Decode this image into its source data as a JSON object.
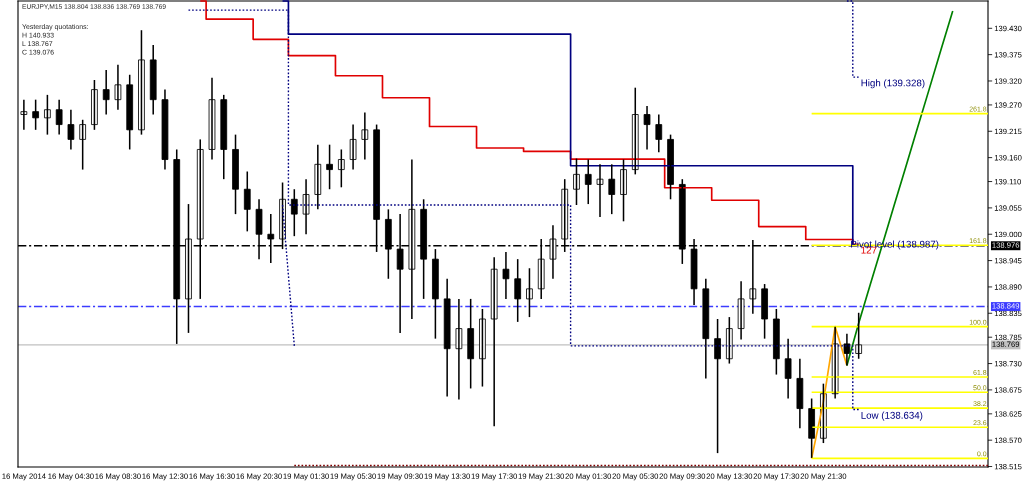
{
  "chart_data": {
    "type": "candlestick",
    "title": "EURJPY,M15 138.804 138.836 138.769 138.769",
    "annotations": [
      "Yesterday quotations:",
      "H 140.933",
      "L 138.767",
      "C 139.076",
      {
        "text": "Pivot level (138.987)",
        "y": 138.987
      }
    ],
    "categories": [
      "16 May 2014",
      null,
      null,
      null,
      "16 May 04:30",
      null,
      null,
      null,
      "16 May 08:30",
      null,
      null,
      null,
      "16 May 12:30",
      null,
      null,
      null,
      "16 May 16:30",
      null,
      null,
      null,
      "16 May 20:30",
      null,
      null,
      null,
      "19 May 01:30",
      null,
      null,
      null,
      "19 May 05:30",
      null,
      null,
      null,
      "19 May 09:30",
      null,
      null,
      null,
      "19 May 13:30",
      null,
      null,
      null,
      "19 May 17:30",
      null,
      null,
      null,
      "19 May 21:30",
      null,
      null,
      null,
      "20 May 01:30",
      null,
      null,
      null,
      "20 May 05:30",
      null,
      null,
      null,
      "20 May 09:30",
      null,
      null,
      null,
      "20 May 13:30",
      null,
      null,
      null,
      "20 May 17:30",
      null,
      null,
      null,
      "20 May 21:30",
      null,
      null,
      null,
      null,
      null,
      null,
      null,
      null,
      null,
      null,
      null,
      null,
      null,
      null
    ],
    "ohlc": [
      [
        139.25,
        139.281,
        139.218,
        139.256
      ],
      [
        139.256,
        139.281,
        139.218,
        139.243
      ],
      [
        139.243,
        139.291,
        139.208,
        139.26
      ],
      [
        139.26,
        139.281,
        139.208,
        139.229
      ],
      [
        139.229,
        139.26,
        139.177,
        139.198
      ],
      [
        139.198,
        139.239,
        139.135,
        139.229
      ],
      [
        139.229,
        139.322,
        139.218,
        139.302
      ],
      [
        139.302,
        139.343,
        139.25,
        139.281
      ],
      [
        139.281,
        139.354,
        139.26,
        139.312
      ],
      [
        139.312,
        139.333,
        139.177,
        139.218
      ],
      [
        139.218,
        139.426,
        139.208,
        139.364
      ],
      [
        139.364,
        139.395,
        139.25,
        139.281
      ],
      [
        139.281,
        139.302,
        139.135,
        139.156
      ],
      [
        139.156,
        139.177,
        138.771,
        138.865
      ],
      [
        138.865,
        139.063,
        138.794,
        138.99
      ],
      [
        138.99,
        139.198,
        138.865,
        139.177
      ],
      [
        139.177,
        139.327,
        139.156,
        139.281
      ],
      [
        139.281,
        139.291,
        139.115,
        139.177
      ],
      [
        139.177,
        139.208,
        139.042,
        139.094
      ],
      [
        139.094,
        139.131,
        139.006,
        139.052
      ],
      [
        139.052,
        139.073,
        138.948,
        139.0
      ],
      [
        139.0,
        139.042,
        138.94,
        138.99
      ],
      [
        138.99,
        139.108,
        138.969,
        139.073
      ],
      [
        139.073,
        139.094,
        138.996,
        139.042
      ],
      [
        139.042,
        139.115,
        139.0,
        139.083
      ],
      [
        139.083,
        139.187,
        139.052,
        139.146
      ],
      [
        139.146,
        139.187,
        139.094,
        139.135
      ],
      [
        139.135,
        139.177,
        139.098,
        139.156
      ],
      [
        139.156,
        139.229,
        139.135,
        139.198
      ],
      [
        139.198,
        139.254,
        139.156,
        139.218
      ],
      [
        139.218,
        139.229,
        138.963,
        139.031
      ],
      [
        139.031,
        139.052,
        138.907,
        138.969
      ],
      [
        138.969,
        139.042,
        138.794,
        138.927
      ],
      [
        138.927,
        139.156,
        138.823,
        139.052
      ],
      [
        139.052,
        139.073,
        138.865,
        138.948
      ],
      [
        138.948,
        138.969,
        138.782,
        138.865
      ],
      [
        138.865,
        138.907,
        138.661,
        138.761
      ],
      [
        138.761,
        138.865,
        138.655,
        138.803
      ],
      [
        138.803,
        138.865,
        138.678,
        138.74
      ],
      [
        138.74,
        138.844,
        138.682,
        138.823
      ],
      [
        138.823,
        138.952,
        138.599,
        138.927
      ],
      [
        138.927,
        138.963,
        138.865,
        138.907
      ],
      [
        138.907,
        138.948,
        138.817,
        138.865
      ],
      [
        138.865,
        138.929,
        138.827,
        138.886
      ],
      [
        138.886,
        138.99,
        138.865,
        138.948
      ],
      [
        138.948,
        139.019,
        138.907,
        138.99
      ],
      [
        138.99,
        139.115,
        138.963,
        139.094
      ],
      [
        139.094,
        139.158,
        139.061,
        139.125
      ],
      [
        139.125,
        139.156,
        139.063,
        139.104
      ],
      [
        139.104,
        139.146,
        139.036,
        139.115
      ],
      [
        139.115,
        139.146,
        139.042,
        139.083
      ],
      [
        139.083,
        139.156,
        139.027,
        139.135
      ],
      [
        139.135,
        139.306,
        139.125,
        139.25
      ],
      [
        139.25,
        139.268,
        139.177,
        139.229
      ],
      [
        139.229,
        139.25,
        139.171,
        139.198
      ],
      [
        139.198,
        139.208,
        139.073,
        139.104
      ],
      [
        139.104,
        139.115,
        138.938,
        138.969
      ],
      [
        138.969,
        138.99,
        138.852,
        138.886
      ],
      [
        138.886,
        138.907,
        138.699,
        138.782
      ],
      [
        138.782,
        138.823,
        138.543,
        138.74
      ],
      [
        138.74,
        138.827,
        138.73,
        138.803
      ],
      [
        138.803,
        138.902,
        138.78,
        138.865
      ],
      [
        138.865,
        138.988,
        138.834,
        138.886
      ],
      [
        138.886,
        138.896,
        138.782,
        138.823
      ],
      [
        138.823,
        138.844,
        138.707,
        138.74
      ],
      [
        138.74,
        138.782,
        138.657,
        138.699
      ],
      [
        138.699,
        138.74,
        138.595,
        138.636
      ],
      [
        138.636,
        138.657,
        138.533,
        138.574
      ],
      [
        138.574,
        138.688,
        138.564,
        138.667
      ],
      [
        138.667,
        138.807,
        138.657,
        138.771
      ],
      [
        138.771,
        138.792,
        138.726,
        138.751
      ],
      [
        138.751,
        138.836,
        138.74,
        138.769
      ],
      null,
      null,
      null,
      null,
      null,
      null,
      null,
      null,
      null,
      null,
      null
    ],
    "series": [
      {
        "type": "step",
        "name": "127",
        "color": "#e00000",
        "values": [
          null,
          null,
          null,
          null,
          null,
          null,
          null,
          null,
          null,
          null,
          null,
          null,
          null,
          null,
          null,
          139.487,
          139.449,
          139.449,
          139.449,
          139.449,
          139.407,
          139.407,
          139.407,
          139.373,
          139.373,
          139.373,
          139.373,
          139.331,
          139.331,
          139.331,
          139.331,
          139.285,
          139.285,
          139.285,
          139.285,
          139.225,
          139.225,
          139.225,
          139.225,
          139.18,
          139.18,
          139.18,
          139.18,
          139.173,
          139.173,
          139.173,
          139.173,
          139.157,
          139.157,
          139.157,
          139.157,
          139.157,
          139.157,
          139.157,
          139.157,
          139.097,
          139.097,
          139.097,
          139.097,
          139.071,
          139.071,
          139.071,
          139.071,
          139.016,
          139.016,
          139.016,
          139.016,
          138.989,
          138.989,
          138.989,
          138.989,
          138.979,
          null,
          null,
          null,
          null,
          null,
          null,
          null,
          null,
          null,
          null,
          null
        ]
      },
      {
        "type": "step",
        "color": "#000080",
        "values": [
          null,
          null,
          null,
          null,
          null,
          null,
          null,
          null,
          null,
          null,
          null,
          null,
          null,
          null,
          null,
          null,
          null,
          null,
          null,
          null,
          null,
          null,
          139.487,
          139.418,
          139.418,
          139.418,
          139.418,
          139.418,
          139.418,
          139.418,
          139.418,
          139.418,
          139.418,
          139.418,
          139.418,
          139.418,
          139.418,
          139.418,
          139.418,
          139.418,
          139.418,
          139.418,
          139.418,
          139.418,
          139.418,
          139.418,
          139.418,
          139.143,
          139.143,
          139.143,
          139.143,
          139.143,
          139.143,
          139.143,
          139.143,
          139.143,
          139.143,
          139.143,
          139.143,
          139.143,
          139.143,
          139.143,
          139.143,
          139.143,
          139.143,
          139.143,
          139.143,
          139.143,
          139.143,
          139.143,
          139.143,
          138.977,
          null,
          null,
          null,
          null,
          null,
          null,
          null,
          null,
          null,
          null,
          null
        ]
      },
      {
        "type": "step",
        "name": "Low (138.634)",
        "line_style": "dotted",
        "color": "#000080",
        "values": [
          null,
          null,
          null,
          null,
          null,
          null,
          null,
          null,
          null,
          null,
          null,
          null,
          null,
          null,
          139.468,
          139.468,
          139.468,
          139.468,
          139.468,
          139.468,
          139.468,
          139.468,
          139.468,
          139.061,
          139.061,
          139.061,
          139.061,
          139.061,
          139.061,
          139.061,
          139.061,
          139.061,
          139.061,
          139.061,
          139.061,
          139.061,
          139.061,
          139.061,
          139.061,
          139.061,
          139.061,
          139.061,
          139.061,
          139.061,
          139.061,
          139.061,
          139.061,
          138.767,
          138.767,
          138.767,
          138.767,
          138.767,
          138.767,
          138.767,
          138.767,
          138.767,
          138.767,
          138.767,
          138.767,
          138.767,
          138.767,
          138.767,
          138.767,
          138.767,
          138.767,
          138.767,
          138.767,
          138.767,
          138.767,
          138.767,
          138.767,
          138.634,
          null,
          null,
          null,
          null,
          null,
          null,
          null,
          null,
          null,
          null,
          null
        ]
      },
      {
        "type": "step",
        "name": "High (139.328)",
        "line_style": "dotted",
        "color": "#000080",
        "values": [
          null,
          null,
          null,
          null,
          null,
          null,
          null,
          null,
          null,
          null,
          null,
          null,
          null,
          null,
          null,
          null,
          null,
          null,
          null,
          null,
          null,
          null,
          null,
          null,
          null,
          null,
          null,
          null,
          null,
          null,
          null,
          null,
          null,
          null,
          null,
          null,
          null,
          null,
          null,
          null,
          null,
          null,
          null,
          null,
          null,
          null,
          null,
          null,
          null,
          null,
          null,
          null,
          null,
          null,
          null,
          null,
          null,
          null,
          null,
          null,
          null,
          null,
          null,
          null,
          null,
          null,
          null,
          null,
          null,
          null,
          139.487,
          139.328,
          null,
          null,
          null,
          null,
          null,
          null,
          null,
          null,
          null,
          null,
          null
        ]
      },
      {
        "type": "line",
        "line_style": "dotted",
        "color": "#000080",
        "values": [
          null,
          null,
          null,
          null,
          null,
          null,
          null,
          null,
          null,
          null,
          null,
          null,
          null,
          null,
          null,
          null,
          null,
          null,
          null,
          null,
          null,
          null,
          139.061,
          138.767,
          null,
          null,
          null,
          null,
          null,
          null,
          null,
          null,
          null,
          null,
          null,
          null,
          null,
          null,
          null,
          null,
          null,
          null,
          null,
          null,
          null,
          null,
          null,
          null,
          null,
          null,
          null,
          null,
          null,
          null,
          null,
          null,
          null,
          null,
          null,
          null,
          null,
          null,
          null,
          null,
          null,
          null,
          null,
          null,
          null,
          null,
          null,
          null,
          null,
          null,
          null,
          null,
          null,
          null,
          null,
          null,
          null,
          null,
          null
        ]
      },
      {
        "type": "line",
        "line_style": "dotted",
        "color": "#800000",
        "values": [
          null,
          null,
          null,
          null,
          null,
          null,
          null,
          null,
          null,
          null,
          null,
          null,
          null,
          null,
          null,
          null,
          null,
          null,
          null,
          null,
          null,
          null,
          null,
          138.517,
          138.517,
          138.517,
          138.517,
          138.517,
          138.517,
          138.517,
          138.517,
          138.517,
          138.517,
          138.517,
          138.517,
          138.517,
          138.517,
          138.517,
          138.517,
          138.517,
          138.517,
          138.517,
          138.517,
          138.517,
          138.517,
          138.517,
          138.517,
          138.517,
          138.517,
          138.517,
          138.517,
          138.517,
          138.517,
          138.517,
          138.517,
          138.517,
          138.517,
          138.517,
          138.517,
          138.517,
          138.517,
          138.517,
          138.517,
          138.517,
          138.517,
          138.517,
          138.517,
          138.517,
          138.517,
          138.517,
          138.517,
          138.517,
          138.517,
          138.517,
          138.517,
          138.517,
          138.517,
          138.517,
          138.517,
          138.517,
          138.517,
          138.517,
          138.517
        ]
      },
      {
        "type": "line",
        "color": "#ffa500",
        "values": [
          null,
          null,
          null,
          null,
          null,
          null,
          null,
          null,
          null,
          null,
          null,
          null,
          null,
          null,
          null,
          null,
          null,
          null,
          null,
          null,
          null,
          null,
          null,
          null,
          null,
          null,
          null,
          null,
          null,
          null,
          null,
          null,
          null,
          null,
          null,
          null,
          null,
          null,
          null,
          null,
          null,
          null,
          null,
          null,
          null,
          null,
          null,
          null,
          null,
          null,
          null,
          null,
          null,
          null,
          null,
          null,
          null,
          null,
          null,
          null,
          null,
          null,
          null,
          null,
          null,
          null,
          null,
          138.532,
          138.65,
          138.807,
          138.726,
          null,
          null,
          null,
          null,
          null,
          null,
          null,
          null,
          null,
          null,
          null,
          null
        ]
      },
      {
        "type": "line",
        "color": "#008000",
        "values": [
          null,
          null,
          null,
          null,
          null,
          null,
          null,
          null,
          null,
          null,
          null,
          null,
          null,
          null,
          null,
          null,
          null,
          null,
          null,
          null,
          null,
          null,
          null,
          null,
          null,
          null,
          null,
          null,
          null,
          null,
          null,
          null,
          null,
          null,
          null,
          null,
          null,
          null,
          null,
          null,
          null,
          null,
          null,
          null,
          null,
          null,
          null,
          null,
          null,
          null,
          null,
          null,
          null,
          null,
          null,
          null,
          null,
          null,
          null,
          null,
          null,
          null,
          null,
          null,
          null,
          null,
          null,
          null,
          null,
          null,
          138.726,
          138.814,
          138.896,
          138.977,
          139.059,
          139.14,
          139.222,
          139.303,
          139.385,
          139.466,
          null,
          null,
          null
        ]
      },
      {
        "type": "line",
        "name": "261.8",
        "color": "#ffff00",
        "values": [
          null,
          null,
          null,
          null,
          null,
          null,
          null,
          null,
          null,
          null,
          null,
          null,
          null,
          null,
          null,
          null,
          null,
          null,
          null,
          null,
          null,
          null,
          null,
          null,
          null,
          null,
          null,
          null,
          null,
          null,
          null,
          null,
          null,
          null,
          null,
          null,
          null,
          null,
          null,
          null,
          null,
          null,
          null,
          null,
          null,
          null,
          null,
          null,
          null,
          null,
          null,
          null,
          null,
          null,
          null,
          null,
          null,
          null,
          null,
          null,
          null,
          null,
          null,
          null,
          null,
          null,
          null,
          139.252,
          139.252,
          139.252,
          139.252,
          139.252,
          139.252,
          139.252,
          139.252,
          139.252,
          139.252,
          139.252,
          139.252,
          139.252,
          139.252,
          139.252,
          139.252
        ]
      },
      {
        "type": "line",
        "name": "161.8",
        "color": "#ffff00",
        "values": [
          null,
          null,
          null,
          null,
          null,
          null,
          null,
          null,
          null,
          null,
          null,
          null,
          null,
          null,
          null,
          null,
          null,
          null,
          null,
          null,
          null,
          null,
          null,
          null,
          null,
          null,
          null,
          null,
          null,
          null,
          null,
          null,
          null,
          null,
          null,
          null,
          null,
          null,
          null,
          null,
          null,
          null,
          null,
          null,
          null,
          null,
          null,
          null,
          null,
          null,
          null,
          null,
          null,
          null,
          null,
          null,
          null,
          null,
          null,
          null,
          null,
          null,
          null,
          null,
          null,
          null,
          null,
          138.977,
          138.977,
          138.977,
          138.977,
          138.977,
          138.977,
          138.977,
          138.977,
          138.977,
          138.977,
          138.977,
          138.977,
          138.977,
          138.977,
          138.977,
          138.977
        ]
      },
      {
        "type": "line",
        "name": "100.0",
        "color": "#ffff00",
        "values": [
          null,
          null,
          null,
          null,
          null,
          null,
          null,
          null,
          null,
          null,
          null,
          null,
          null,
          null,
          null,
          null,
          null,
          null,
          null,
          null,
          null,
          null,
          null,
          null,
          null,
          null,
          null,
          null,
          null,
          null,
          null,
          null,
          null,
          null,
          null,
          null,
          null,
          null,
          null,
          null,
          null,
          null,
          null,
          null,
          null,
          null,
          null,
          null,
          null,
          null,
          null,
          null,
          null,
          null,
          null,
          null,
          null,
          null,
          null,
          null,
          null,
          null,
          null,
          null,
          null,
          null,
          null,
          138.807,
          138.807,
          138.807,
          138.807,
          138.807,
          138.807,
          138.807,
          138.807,
          138.807,
          138.807,
          138.807,
          138.807,
          138.807,
          138.807,
          138.807,
          138.807
        ]
      },
      {
        "type": "line",
        "name": "61.8",
        "color": "#ffff00",
        "values": [
          null,
          null,
          null,
          null,
          null,
          null,
          null,
          null,
          null,
          null,
          null,
          null,
          null,
          null,
          null,
          null,
          null,
          null,
          null,
          null,
          null,
          null,
          null,
          null,
          null,
          null,
          null,
          null,
          null,
          null,
          null,
          null,
          null,
          null,
          null,
          null,
          null,
          null,
          null,
          null,
          null,
          null,
          null,
          null,
          null,
          null,
          null,
          null,
          null,
          null,
          null,
          null,
          null,
          null,
          null,
          null,
          null,
          null,
          null,
          null,
          null,
          null,
          null,
          null,
          null,
          null,
          null,
          138.702,
          138.702,
          138.702,
          138.702,
          138.702,
          138.702,
          138.702,
          138.702,
          138.702,
          138.702,
          138.702,
          138.702,
          138.702,
          138.702,
          138.702,
          138.702
        ]
      },
      {
        "type": "line",
        "name": "50.0",
        "color": "#ffff00",
        "values": [
          null,
          null,
          null,
          null,
          null,
          null,
          null,
          null,
          null,
          null,
          null,
          null,
          null,
          null,
          null,
          null,
          null,
          null,
          null,
          null,
          null,
          null,
          null,
          null,
          null,
          null,
          null,
          null,
          null,
          null,
          null,
          null,
          null,
          null,
          null,
          null,
          null,
          null,
          null,
          null,
          null,
          null,
          null,
          null,
          null,
          null,
          null,
          null,
          null,
          null,
          null,
          null,
          null,
          null,
          null,
          null,
          null,
          null,
          null,
          null,
          null,
          null,
          null,
          null,
          null,
          null,
          null,
          138.67,
          138.67,
          138.67,
          138.67,
          138.67,
          138.67,
          138.67,
          138.67,
          138.67,
          138.67,
          138.67,
          138.67,
          138.67,
          138.67,
          138.67,
          138.67
        ]
      },
      {
        "type": "line",
        "name": "38.2",
        "color": "#ffff00",
        "values": [
          null,
          null,
          null,
          null,
          null,
          null,
          null,
          null,
          null,
          null,
          null,
          null,
          null,
          null,
          null,
          null,
          null,
          null,
          null,
          null,
          null,
          null,
          null,
          null,
          null,
          null,
          null,
          null,
          null,
          null,
          null,
          null,
          null,
          null,
          null,
          null,
          null,
          null,
          null,
          null,
          null,
          null,
          null,
          null,
          null,
          null,
          null,
          null,
          null,
          null,
          null,
          null,
          null,
          null,
          null,
          null,
          null,
          null,
          null,
          null,
          null,
          null,
          null,
          null,
          null,
          null,
          null,
          138.637,
          138.637,
          138.637,
          138.637,
          138.637,
          138.637,
          138.637,
          138.637,
          138.637,
          138.637,
          138.637,
          138.637,
          138.637,
          138.637,
          138.637,
          138.637
        ]
      },
      {
        "type": "line",
        "name": "23.6",
        "color": "#ffff00",
        "values": [
          null,
          null,
          null,
          null,
          null,
          null,
          null,
          null,
          null,
          null,
          null,
          null,
          null,
          null,
          null,
          null,
          null,
          null,
          null,
          null,
          null,
          null,
          null,
          null,
          null,
          null,
          null,
          null,
          null,
          null,
          null,
          null,
          null,
          null,
          null,
          null,
          null,
          null,
          null,
          null,
          null,
          null,
          null,
          null,
          null,
          null,
          null,
          null,
          null,
          null,
          null,
          null,
          null,
          null,
          null,
          null,
          null,
          null,
          null,
          null,
          null,
          null,
          null,
          null,
          null,
          null,
          null,
          138.597,
          138.597,
          138.597,
          138.597,
          138.597,
          138.597,
          138.597,
          138.597,
          138.597,
          138.597,
          138.597,
          138.597,
          138.597,
          138.597,
          138.597,
          138.597
        ]
      },
      {
        "type": "line",
        "name": "0.0",
        "color": "#ffff00",
        "values": [
          null,
          null,
          null,
          null,
          null,
          null,
          null,
          null,
          null,
          null,
          null,
          null,
          null,
          null,
          null,
          null,
          null,
          null,
          null,
          null,
          null,
          null,
          null,
          null,
          null,
          null,
          null,
          null,
          null,
          null,
          null,
          null,
          null,
          null,
          null,
          null,
          null,
          null,
          null,
          null,
          null,
          null,
          null,
          null,
          null,
          null,
          null,
          null,
          null,
          null,
          null,
          null,
          null,
          null,
          null,
          null,
          null,
          null,
          null,
          null,
          null,
          null,
          null,
          null,
          null,
          null,
          null,
          138.532,
          138.532,
          138.532,
          138.532,
          138.532,
          138.532,
          138.532,
          138.532,
          138.532,
          138.532,
          138.532,
          138.532,
          138.532,
          138.532,
          138.532,
          138.532
        ]
      }
    ],
    "ref_lines": [
      {
        "axis": "y",
        "value": 138.976,
        "label": "138.976",
        "color": "#000000",
        "line_style": "dashed"
      },
      {
        "axis": "y",
        "value": 138.849,
        "label": "138.849",
        "color": "#3c3cff",
        "line_style": "dashed"
      },
      {
        "axis": "y",
        "value": 138.769,
        "label": "138.769",
        "color": "#c0c0c0"
      }
    ],
    "ylim": [
      138.514,
      139.487
    ],
    "yticks": [
      {
        "value": 139.43,
        "label": "139.430"
      },
      139.375,
      {
        "value": 139.32,
        "label": "139.320"
      },
      {
        "value": 139.27,
        "label": "139.270"
      },
      139.215,
      {
        "value": 139.16,
        "label": "139.160"
      },
      {
        "value": 139.11,
        "label": "139.110"
      },
      139.055,
      {
        "value": 139.0,
        "label": "139.000"
      },
      138.945,
      {
        "value": 138.89,
        "label": "138.890"
      },
      138.835,
      138.785,
      {
        "value": 138.73,
        "label": "138.730"
      },
      138.675,
      138.625,
      {
        "value": 138.57,
        "label": "138.570"
      },
      138.515
    ]
  }
}
